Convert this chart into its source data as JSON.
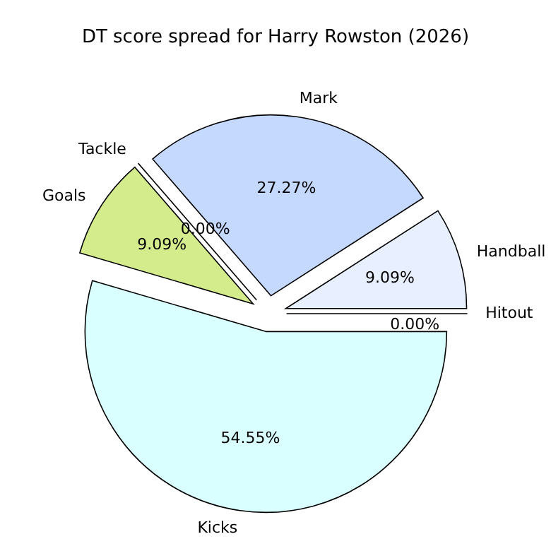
{
  "chart_data": {
    "type": "pie",
    "title": "DT score spread for Harry Rowston (2026)",
    "categories": [
      "Hitout",
      "Handball",
      "Mark",
      "Tackle",
      "Goals",
      "Kicks"
    ],
    "values": [
      0,
      9.09,
      27.27,
      0,
      9.09,
      54.55
    ],
    "value_labels": [
      "0.00%",
      "9.09%",
      "27.27%",
      "0.00%",
      "9.09%",
      "54.55%"
    ],
    "colors": [
      "#f0f0ff",
      "#e8f0ff",
      "#c5d9ff",
      "#ffe0e0",
      "#d4ec8c",
      "#d9ffff"
    ]
  }
}
